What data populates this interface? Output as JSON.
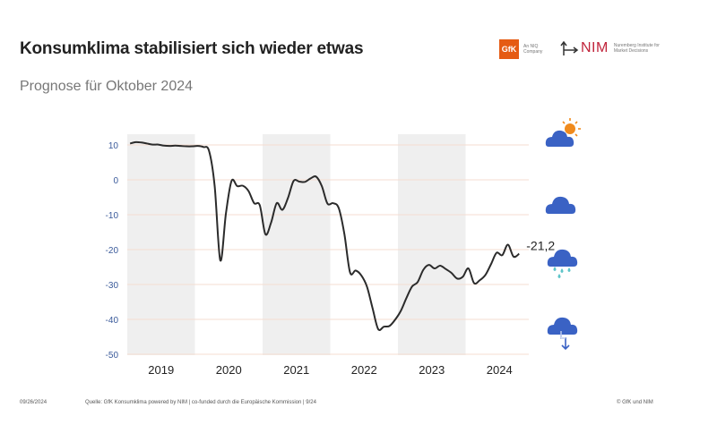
{
  "header": {
    "title": "Konsumklima stabilisiert sich wieder etwas",
    "subtitle": "Prognose für Oktober 2024"
  },
  "logos": {
    "gfk": {
      "mark": "GfK",
      "tagline": "An NIQ Company",
      "color": "#e55b13"
    },
    "nim": {
      "mark": "NIM",
      "tagline": "Nuremberg Institute for Market Decisions",
      "color": "#c0243b"
    }
  },
  "weather_icons": [
    {
      "name": "sun-behind-cloud-icon",
      "level": 10
    },
    {
      "name": "cloud-icon",
      "level": -5
    },
    {
      "name": "rain-cloud-icon",
      "level": -20
    },
    {
      "name": "thunderstorm-cloud-icon",
      "level": -37
    }
  ],
  "colors": {
    "line": "#2b2b2b",
    "tick_label": "#3a5a9a",
    "band": "#efefef",
    "grid": "#f6ddd0",
    "cloud": "#3a62c4",
    "sun": "#f08a1c",
    "rain": "#5cc4c8"
  },
  "footer": {
    "date": "09/26/2024",
    "source": "Quelle: GfK Konsumklima powered by NIM | co-funded durch die Europäische Kommission | 9/24",
    "copyright": "© GfK und NIM"
  },
  "chart_data": {
    "type": "line",
    "title": "Konsumklima stabilisiert sich wieder etwas",
    "subtitle": "Prognose für Oktober 2024",
    "xlabel": "",
    "ylabel": "",
    "ylim": [
      -50,
      13
    ],
    "yticks": [
      10,
      0,
      -10,
      -20,
      -30,
      -40,
      -50
    ],
    "xticks": [
      "2019",
      "2020",
      "2021",
      "2022",
      "2023",
      "2024"
    ],
    "shaded_years": [
      "2019",
      "2021",
      "2023"
    ],
    "grid": true,
    "end_label": "-21,2",
    "series": [
      {
        "name": "Konsumklima",
        "x": [
          "2019-01",
          "2019-02",
          "2019-03",
          "2019-04",
          "2019-05",
          "2019-06",
          "2019-07",
          "2019-08",
          "2019-09",
          "2019-10",
          "2019-11",
          "2019-12",
          "2020-01",
          "2020-02",
          "2020-03",
          "2020-04",
          "2020-05",
          "2020-06",
          "2020-07",
          "2020-08",
          "2020-09",
          "2020-10",
          "2020-11",
          "2020-12",
          "2021-01",
          "2021-02",
          "2021-03",
          "2021-04",
          "2021-05",
          "2021-06",
          "2021-07",
          "2021-08",
          "2021-09",
          "2021-10",
          "2021-11",
          "2021-12",
          "2022-01",
          "2022-02",
          "2022-03",
          "2022-04",
          "2022-05",
          "2022-06",
          "2022-07",
          "2022-08",
          "2022-09",
          "2022-10",
          "2022-11",
          "2022-12",
          "2023-01",
          "2023-02",
          "2023-03",
          "2023-04",
          "2023-05",
          "2023-06",
          "2023-07",
          "2023-08",
          "2023-09",
          "2023-10",
          "2023-11",
          "2023-12",
          "2024-01",
          "2024-02",
          "2024-03",
          "2024-04",
          "2024-05",
          "2024-06",
          "2024-07",
          "2024-08",
          "2024-09",
          "2024-10"
        ],
        "values": [
          10.4,
          10.8,
          10.7,
          10.4,
          10.1,
          10.1,
          9.8,
          9.7,
          9.8,
          9.7,
          9.6,
          9.6,
          9.7,
          9.4,
          8.3,
          -1.8,
          -23.1,
          -9.6,
          -0.3,
          -1.8,
          -1.7,
          -3.2,
          -6.7,
          -7.3,
          -15.6,
          -12.3,
          -6.7,
          -8.6,
          -5.2,
          -0.3,
          -0.5,
          -0.6,
          0.4,
          0.9,
          -1.8,
          -6.8,
          -6.7,
          -8.1,
          -15.5,
          -26.5,
          -26.0,
          -27.4,
          -30.6,
          -36.8,
          -42.8,
          -42.1,
          -41.9,
          -40.1,
          -37.6,
          -33.9,
          -30.6,
          -29.3,
          -25.8,
          -24.4,
          -25.4,
          -24.6,
          -25.6,
          -26.7,
          -28.3,
          -27.8,
          -25.4,
          -29.6,
          -28.8,
          -27.3,
          -24.2,
          -20.9,
          -21.6,
          -18.6,
          -22.0,
          -21.2
        ]
      }
    ]
  }
}
